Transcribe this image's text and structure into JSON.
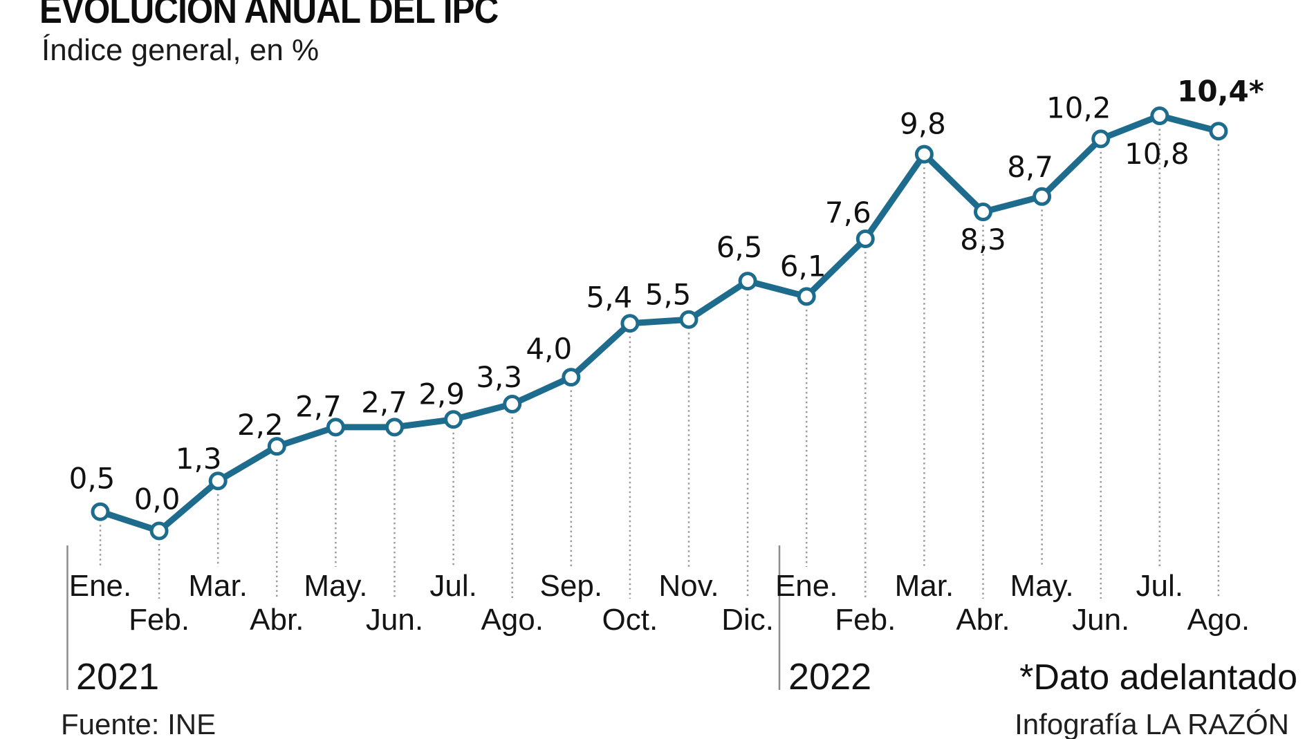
{
  "header": {
    "title": "EVOLUCIÓN ANUAL DEL IPC",
    "subtitle": "Índice general, en %"
  },
  "footer": {
    "source": "Fuente: INE",
    "credit": "Infografía LA RAZÓN"
  },
  "colors": {
    "line": "#1e6c8d",
    "marker_fill": "#ffffff",
    "guide_dotted": "#9a9a9a",
    "year_separator": "#8c8c8c",
    "text": "#111111"
  },
  "chart_data": {
    "type": "line",
    "title": "EVOLUCIÓN ANUAL DEL IPC",
    "subtitle": "Índice general, en %",
    "unit": "%",
    "ylim": [
      0,
      11
    ],
    "grid": "vertical-dotted-guides",
    "year_labels": [
      "2021",
      "2022"
    ],
    "annotations": {
      "advance_note": "*Dato adelantado"
    },
    "points": [
      {
        "month": "Ene.",
        "year": "2021",
        "value": 0.5,
        "label": "0,5"
      },
      {
        "month": "Feb.",
        "year": "2021",
        "value": 0.0,
        "label": "0,0"
      },
      {
        "month": "Mar.",
        "year": "2021",
        "value": 1.3,
        "label": "1,3"
      },
      {
        "month": "Abr.",
        "year": "2021",
        "value": 2.2,
        "label": "2,2"
      },
      {
        "month": "May.",
        "year": "2021",
        "value": 2.7,
        "label": "2,7"
      },
      {
        "month": "Jun.",
        "year": "2021",
        "value": 2.7,
        "label": "2,7"
      },
      {
        "month": "Jul.",
        "year": "2021",
        "value": 2.9,
        "label": "2,9"
      },
      {
        "month": "Ago.",
        "year": "2021",
        "value": 3.3,
        "label": "3,3"
      },
      {
        "month": "Sep.",
        "year": "2021",
        "value": 4.0,
        "label": "4,0"
      },
      {
        "month": "Oct.",
        "year": "2021",
        "value": 5.4,
        "label": "5,4"
      },
      {
        "month": "Nov.",
        "year": "2021",
        "value": 5.5,
        "label": "5,5"
      },
      {
        "month": "Dic.",
        "year": "2021",
        "value": 6.5,
        "label": "6,5"
      },
      {
        "month": "Ene.",
        "year": "2022",
        "value": 6.1,
        "label": "6,1"
      },
      {
        "month": "Feb.",
        "year": "2022",
        "value": 7.6,
        "label": "7,6"
      },
      {
        "month": "Mar.",
        "year": "2022",
        "value": 9.8,
        "label": "9,8"
      },
      {
        "month": "Abr.",
        "year": "2022",
        "value": 8.3,
        "label": "8,3",
        "label_position": "below"
      },
      {
        "month": "May.",
        "year": "2022",
        "value": 8.7,
        "label": "8,7"
      },
      {
        "month": "Jun.",
        "year": "2022",
        "value": 10.2,
        "label": "10,2"
      },
      {
        "month": "Jul.",
        "year": "2022",
        "value": 10.8,
        "label": "10,8",
        "label_position": "below"
      },
      {
        "month": "Ago.",
        "year": "2022",
        "value": 10.4,
        "label": "10,4*",
        "bold": true
      }
    ]
  }
}
